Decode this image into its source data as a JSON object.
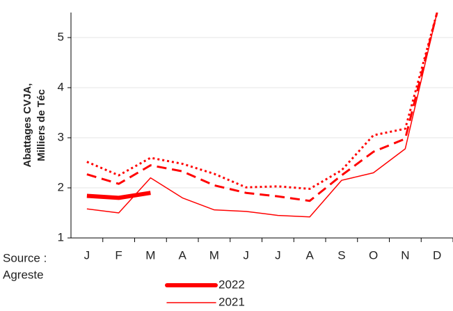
{
  "chart_data": {
    "type": "line",
    "y_label": [
      "Abattages CVJA,",
      "Milliers de Téc"
    ],
    "note": [
      "Source :",
      "Agreste"
    ],
    "categories": [
      "J",
      "F",
      "M",
      "A",
      "M",
      "J",
      "J",
      "A",
      "S",
      "O",
      "N",
      "D"
    ],
    "series": [
      {
        "name": "2022",
        "color": "#ff0000",
        "width": 6,
        "dash": "solid",
        "values": [
          1.84,
          1.8,
          1.9,
          null,
          null,
          null,
          null,
          null,
          null,
          null,
          null,
          null
        ]
      },
      {
        "name": "2021",
        "color": "#ff0000",
        "width": 1.5,
        "dash": "solid",
        "values": [
          1.58,
          1.5,
          2.2,
          1.8,
          1.56,
          1.53,
          1.45,
          1.42,
          2.15,
          2.3,
          2.78,
          5.5
        ]
      },
      {
        "color": "#ff0000",
        "width": 3,
        "dash": "dashed",
        "values": [
          2.27,
          2.08,
          2.45,
          2.33,
          2.05,
          1.9,
          1.83,
          1.74,
          2.25,
          2.72,
          2.98,
          5.5
        ]
      },
      {
        "color": "#ff0000",
        "width": 3,
        "dash": "dotted",
        "values": [
          2.52,
          2.25,
          2.6,
          2.48,
          2.28,
          2.01,
          2.03,
          1.98,
          2.35,
          3.05,
          3.18,
          5.5
        ]
      }
    ],
    "ylim": [
      1,
      5.5
    ],
    "yticks": [
      1,
      2,
      3,
      4,
      5
    ],
    "grid": true
  }
}
